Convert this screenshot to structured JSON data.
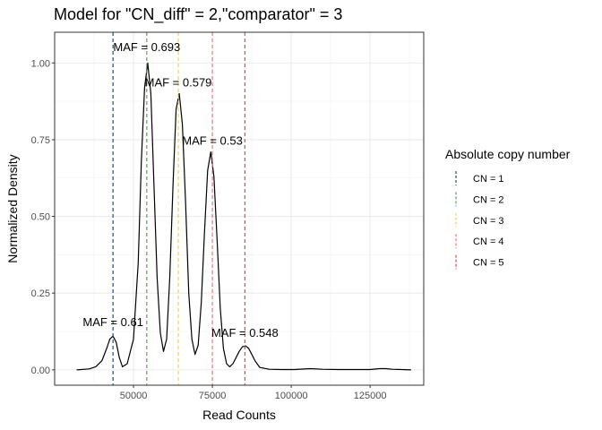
{
  "chart_data": {
    "type": "line",
    "title": "Model for \"CN_diff\" = 2,\"comparator\" = 3",
    "xlabel": "Read Counts",
    "ylabel": "Normalized Density",
    "xlim": [
      25000,
      142000
    ],
    "ylim": [
      -0.05,
      1.1
    ],
    "x_ticks": [
      50000,
      75000,
      100000,
      125000
    ],
    "y_ticks": [
      0.0,
      0.25,
      0.5,
      0.75,
      1.0
    ],
    "x_tick_labels": [
      "50000",
      "75000",
      "100000",
      "125000"
    ],
    "y_tick_labels": [
      "0.00",
      "0.25",
      "0.50",
      "0.75",
      "1.00"
    ],
    "grid": true,
    "series": [
      {
        "x": [
          32000,
          36000,
          38000,
          40000,
          41500,
          42500,
          43500,
          44500,
          45500,
          46500,
          48000,
          50000,
          51500,
          52500,
          53500,
          54500,
          55500,
          56500,
          57500,
          58500,
          59500,
          60500,
          61500,
          62500,
          63500,
          64500,
          65500,
          66500,
          67500,
          68500,
          69500,
          70500,
          71500,
          72500,
          73500,
          74500,
          75500,
          76500,
          77500,
          78500,
          79500,
          80500,
          81500,
          82500,
          83500,
          84500,
          85500,
          86500,
          87500,
          88500,
          90000,
          93000,
          97000,
          101000,
          106000,
          110000,
          115000,
          120000,
          125000,
          128000,
          130000,
          132000,
          135000,
          138000
        ],
        "y": [
          0.0,
          0.003,
          0.01,
          0.03,
          0.07,
          0.1,
          0.11,
          0.09,
          0.04,
          0.01,
          0.02,
          0.1,
          0.35,
          0.68,
          0.92,
          1.0,
          0.9,
          0.6,
          0.3,
          0.12,
          0.06,
          0.1,
          0.3,
          0.6,
          0.85,
          0.9,
          0.8,
          0.55,
          0.25,
          0.1,
          0.05,
          0.08,
          0.22,
          0.45,
          0.65,
          0.71,
          0.63,
          0.42,
          0.2,
          0.07,
          0.02,
          0.01,
          0.02,
          0.04,
          0.06,
          0.075,
          0.078,
          0.07,
          0.05,
          0.03,
          0.008,
          0.002,
          0.001,
          0.001,
          0.004,
          0.002,
          0.001,
          0.001,
          0.001,
          0.004,
          0.004,
          0.002,
          0.001,
          0.0
        ],
        "color": "#000000"
      }
    ],
    "cn_lines": [
      {
        "label": "CN = 1",
        "x": 43500,
        "color": "#17376b"
      },
      {
        "label": "CN = 2",
        "x": 54200,
        "color": "#3aa537"
      },
      {
        "label": "CN = 3",
        "x": 64200,
        "color": "#e9d143"
      },
      {
        "label": "CN = 4",
        "x": 75000,
        "color": "#ef6a5a"
      },
      {
        "label": "CN = 5",
        "x": 85300,
        "color": "#e33a2e"
      }
    ],
    "annotations": [
      {
        "text": "MAF = 0.61",
        "x": 43500,
        "y": 0.155
      },
      {
        "text": "MAF = 0.693",
        "x": 54200,
        "y": 1.05
      },
      {
        "text": "MAF = 0.579",
        "x": 64200,
        "y": 0.935
      },
      {
        "text": "MAF = 0.53",
        "x": 75000,
        "y": 0.745
      },
      {
        "text": "MAF = 0.548",
        "x": 85300,
        "y": 0.12
      }
    ],
    "legend": {
      "title": "Absolute copy number",
      "position": "right"
    }
  }
}
